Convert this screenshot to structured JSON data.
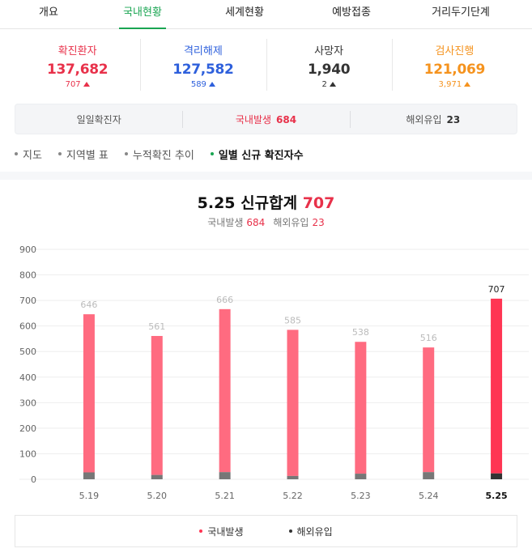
{
  "tabs": [
    {
      "label": "개요",
      "active": false
    },
    {
      "label": "국내현황",
      "active": true
    },
    {
      "label": "세계현황",
      "active": false
    },
    {
      "label": "예방접종",
      "active": false
    },
    {
      "label": "거리두기단계",
      "active": false
    }
  ],
  "stats": [
    {
      "label": "확진환자",
      "value": "137,682",
      "delta": "707",
      "color": "#e8314a"
    },
    {
      "label": "격리해제",
      "value": "127,582",
      "delta": "589",
      "color": "#2e60dc"
    },
    {
      "label": "사망자",
      "value": "1,940",
      "delta": "2",
      "color": "#333333"
    },
    {
      "label": "검사진행",
      "value": "121,069",
      "delta": "3,971",
      "color": "#f5931e"
    }
  ],
  "daily": {
    "label": "일일확진자",
    "domestic_label": "국내발생",
    "domestic_value": "684",
    "overseas_label": "해외유입",
    "overseas_value": "23"
  },
  "subnav": [
    {
      "label": "지도",
      "active": false
    },
    {
      "label": "지역별 표",
      "active": false
    },
    {
      "label": "누적확진 추이",
      "active": false
    },
    {
      "label": "일별 신규 확진자수",
      "active": true
    }
  ],
  "chart_header": {
    "date": "5.25",
    "title_text": "신규합계",
    "total": "707",
    "domestic_label": "국내발생",
    "domestic_value": "684",
    "overseas_label": "해외유입",
    "overseas_value": "23"
  },
  "legend": {
    "domestic": "국내발생",
    "overseas": "해외유입"
  },
  "chart_data": {
    "type": "bar",
    "stacked": true,
    "categories": [
      "5.19",
      "5.20",
      "5.21",
      "5.22",
      "5.23",
      "5.24",
      "5.25"
    ],
    "totals": [
      646,
      561,
      666,
      585,
      538,
      516,
      707
    ],
    "series": [
      {
        "name": "국내발생",
        "values": [
          619,
          544,
          638,
          572,
          516,
          488,
          684
        ],
        "color": "#ff6b80",
        "highlight_color": "#ff3553"
      },
      {
        "name": "해외유입",
        "values": [
          27,
          17,
          28,
          13,
          22,
          28,
          23
        ],
        "color": "#777777",
        "highlight_color": "#333333"
      }
    ],
    "highlight_index": 6,
    "yticks": [
      0,
      100,
      200,
      300,
      400,
      500,
      600,
      700,
      800,
      900
    ],
    "ylim": [
      0,
      900
    ],
    "grid": true,
    "legend": "bottom"
  }
}
